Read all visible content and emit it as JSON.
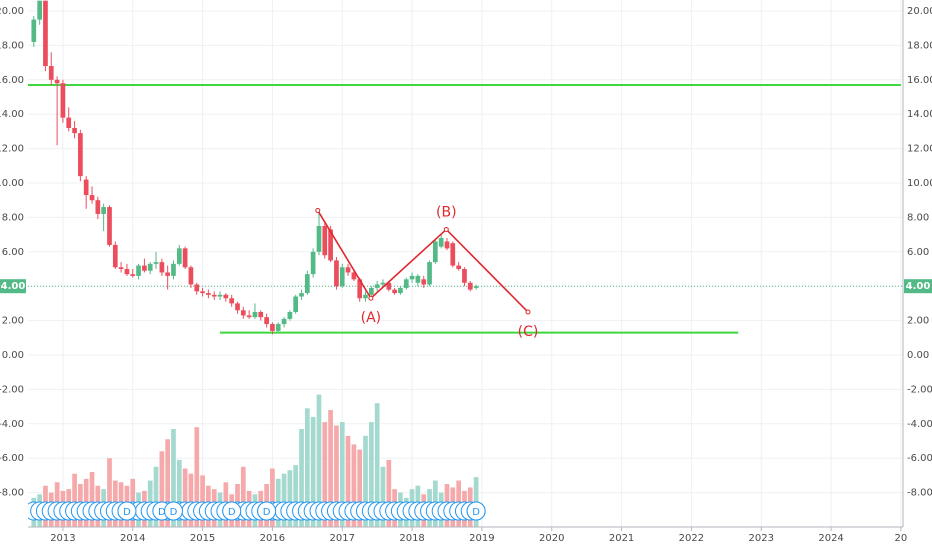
{
  "chart_data": {
    "type": "candlestick",
    "xlim": [
      2012.5,
      2025.03
    ],
    "ylim": [
      -10,
      20.64
    ],
    "grid": true,
    "up_color": "#53b987",
    "down_color": "#eb4d5c",
    "xticks": [
      2013,
      2014,
      2015,
      2016,
      2017,
      2018,
      2019,
      2020,
      2021,
      2022,
      2023,
      2024,
      {
        "value": 2025,
        "label": "20"
      }
    ],
    "yticks": [
      {
        "value": -8,
        "label": "-8.00"
      },
      {
        "value": -6,
        "label": "-6.00"
      },
      {
        "value": -4,
        "label": "-4.00"
      },
      {
        "value": -2,
        "label": "-2.00"
      },
      {
        "value": 0,
        "label": "0.00"
      },
      {
        "value": 2,
        "label": "2.00"
      },
      {
        "value": 4,
        "label": "4.00"
      },
      {
        "value": 6,
        "label": "6.00"
      },
      {
        "value": 8,
        "label": "8.00"
      },
      {
        "value": 10,
        "label": "10.00"
      },
      {
        "value": 12,
        "label": "12.00"
      },
      {
        "value": 14,
        "label": "14.00"
      },
      {
        "value": 16,
        "label": "16.00"
      },
      {
        "value": 18,
        "label": "18.00"
      },
      {
        "value": 20,
        "label": "20.00"
      }
    ],
    "last_price": {
      "value": 4,
      "label": "4.00"
    },
    "x": [
      2012.583,
      2012.667,
      2012.75,
      2012.833,
      2012.917,
      2013,
      2013.083,
      2013.167,
      2013.25,
      2013.333,
      2013.417,
      2013.5,
      2013.583,
      2013.667,
      2013.75,
      2013.833,
      2013.917,
      2014,
      2014.083,
      2014.167,
      2014.25,
      2014.333,
      2014.417,
      2014.5,
      2014.583,
      2014.667,
      2014.75,
      2014.833,
      2014.917,
      2015,
      2015.083,
      2015.167,
      2015.25,
      2015.333,
      2015.417,
      2015.5,
      2015.583,
      2015.667,
      2015.75,
      2015.833,
      2015.917,
      2016,
      2016.083,
      2016.167,
      2016.25,
      2016.333,
      2016.417,
      2016.5,
      2016.583,
      2016.667,
      2016.75,
      2016.833,
      2016.917,
      2017,
      2017.083,
      2017.167,
      2017.25,
      2017.333,
      2017.417,
      2017.5,
      2017.583,
      2017.667,
      2017.75,
      2017.833,
      2017.917,
      2018,
      2018.083,
      2018.167,
      2018.25,
      2018.333,
      2018.417,
      2018.5,
      2018.583,
      2018.667,
      2018.75,
      2018.833,
      2018.917
    ],
    "ohlc": [
      [
        18.2,
        19.7,
        17.9,
        19.5
      ],
      [
        19.5,
        20.6,
        19.2,
        20.6
      ],
      [
        20.6,
        20.6,
        16.5,
        16.8
      ],
      [
        16.8,
        17.6,
        15.7,
        16.0
      ],
      [
        16.0,
        16.2,
        12.2,
        15.8
      ],
      [
        15.8,
        16.0,
        13.5,
        13.8
      ],
      [
        13.8,
        14.4,
        13.0,
        13.2
      ],
      [
        13.2,
        13.6,
        12.6,
        12.9
      ],
      [
        12.9,
        13.1,
        10.1,
        10.4
      ],
      [
        10.2,
        10.4,
        8.5,
        9.3
      ],
      [
        9.3,
        9.8,
        8.8,
        9.0
      ],
      [
        9.0,
        9.2,
        7.9,
        8.2
      ],
      [
        8.2,
        8.8,
        7.2,
        8.6
      ],
      [
        8.6,
        8.7,
        6.3,
        6.4
      ],
      [
        6.4,
        6.6,
        5.0,
        5.1
      ],
      [
        5.1,
        5.4,
        4.8,
        5.0
      ],
      [
        5.0,
        5.3,
        4.6,
        4.7
      ],
      [
        4.7,
        5.0,
        4.5,
        4.6
      ],
      [
        4.6,
        5.3,
        4.4,
        5.2
      ],
      [
        5.2,
        5.6,
        4.8,
        4.9
      ],
      [
        4.9,
        5.4,
        4.7,
        5.3
      ],
      [
        5.3,
        6.0,
        5.0,
        5.4
      ],
      [
        5.4,
        5.6,
        4.6,
        4.8
      ],
      [
        4.8,
        5.2,
        3.8,
        4.6
      ],
      [
        4.6,
        5.5,
        4.4,
        5.3
      ],
      [
        5.3,
        6.4,
        5.2,
        6.2
      ],
      [
        6.2,
        6.3,
        5.0,
        5.1
      ],
      [
        5.1,
        5.2,
        3.9,
        4.1
      ],
      [
        4.1,
        4.2,
        3.5,
        3.7
      ],
      [
        3.7,
        3.9,
        3.4,
        3.6
      ],
      [
        3.6,
        3.8,
        3.3,
        3.5
      ],
      [
        3.5,
        3.7,
        3.2,
        3.4
      ],
      [
        3.4,
        3.7,
        3.2,
        3.5
      ],
      [
        3.5,
        3.6,
        3.1,
        3.3
      ],
      [
        3.3,
        3.5,
        2.8,
        3.0
      ],
      [
        3.0,
        3.1,
        2.4,
        2.6
      ],
      [
        2.6,
        2.8,
        2.1,
        2.3
      ],
      [
        2.3,
        2.6,
        2.1,
        2.2
      ],
      [
        2.2,
        3.0,
        2.1,
        2.5
      ],
      [
        2.5,
        2.6,
        2.0,
        2.2
      ],
      [
        2.2,
        2.4,
        1.6,
        1.8
      ],
      [
        1.8,
        1.9,
        1.2,
        1.4
      ],
      [
        1.4,
        1.9,
        1.3,
        1.8
      ],
      [
        1.8,
        2.2,
        1.6,
        2.1
      ],
      [
        2.1,
        2.6,
        2.0,
        2.5
      ],
      [
        2.5,
        3.5,
        2.4,
        3.4
      ],
      [
        3.4,
        3.8,
        3.2,
        3.6
      ],
      [
        3.6,
        4.9,
        3.5,
        4.7
      ],
      [
        4.7,
        6.2,
        4.5,
        6.0
      ],
      [
        6.0,
        8.4,
        5.8,
        7.5
      ],
      [
        7.5,
        7.7,
        5.6,
        5.8
      ],
      [
        7.3,
        7.5,
        5.4,
        5.5
      ],
      [
        5.5,
        5.7,
        3.8,
        4.0
      ],
      [
        4.0,
        5.3,
        3.9,
        5.1
      ],
      [
        5.1,
        5.3,
        4.6,
        4.8
      ],
      [
        4.8,
        4.9,
        4.3,
        4.4
      ],
      [
        4.4,
        4.5,
        3.1,
        3.3
      ],
      [
        3.3,
        3.7,
        3.1,
        3.5
      ],
      [
        3.5,
        4.0,
        3.4,
        3.9
      ],
      [
        3.9,
        4.3,
        3.7,
        4.1
      ],
      [
        4.1,
        4.4,
        3.9,
        4.2
      ],
      [
        4.2,
        4.3,
        3.7,
        3.8
      ],
      [
        3.8,
        3.9,
        3.5,
        3.6
      ],
      [
        3.6,
        4.0,
        3.5,
        3.9
      ],
      [
        3.9,
        4.5,
        3.8,
        4.4
      ],
      [
        4.4,
        4.8,
        4.2,
        4.6
      ],
      [
        4.2,
        4.7,
        4.0,
        4.6
      ],
      [
        4.4,
        4.6,
        3.9,
        4.1
      ],
      [
        4.1,
        5.5,
        4.0,
        5.4
      ],
      [
        5.4,
        6.7,
        5.3,
        6.6
      ],
      [
        6.3,
        7.0,
        6.2,
        6.8
      ],
      [
        6.6,
        6.8,
        6.1,
        6.2
      ],
      [
        6.5,
        6.6,
        5.1,
        5.2
      ],
      [
        5.2,
        5.4,
        4.9,
        5.0
      ],
      [
        5.0,
        5.1,
        4.0,
        4.2
      ],
      [
        4.2,
        4.3,
        3.7,
        3.8
      ],
      [
        3.9,
        4.1,
        3.8,
        4.0
      ]
    ],
    "volume": {
      "values": [
        -8.3,
        -8.1,
        -7.6,
        -8.0,
        -7.4,
        -7.9,
        -7.8,
        -6.9,
        -7.5,
        -7.2,
        -6.8,
        -7.6,
        -7.8,
        -6.0,
        -7.3,
        -7.4,
        -7.6,
        -7.2,
        -8.0,
        -7.9,
        -7.3,
        -6.5,
        -5.6,
        -4.9,
        -4.3,
        -6.1,
        -6.6,
        -6.9,
        -4.2,
        -7.0,
        -7.6,
        -7.8,
        -8.0,
        -7.4,
        -8.1,
        -7.5,
        -6.5,
        -7.9,
        -8.1,
        -7.9,
        -7.5,
        -6.6,
        -7.2,
        -6.9,
        -6.7,
        -6.4,
        -4.3,
        -3.1,
        -3.6,
        -2.3,
        -3.9,
        -3.2,
        -4.1,
        -3.9,
        -4.7,
        -5.2,
        -5.5,
        -4.7,
        -3.9,
        -2.8,
        -6.5,
        -6.1,
        -7.8,
        -8.0,
        -8.3,
        -7.8,
        -7.6,
        -8.1,
        -7.8,
        -7.3,
        -8.0,
        -7.5,
        -7.7,
        -7.3,
        -7.9,
        -7.7,
        -7.1
      ],
      "up_color": "#a3d9cf",
      "down_color": "#f5a9ab"
    },
    "markers": [
      {
        "x": 2013.917,
        "label": "D"
      },
      {
        "x": 2014.417,
        "label": "D"
      },
      {
        "x": 2014.583,
        "label": "D"
      },
      {
        "x": 2015.417,
        "label": "D"
      },
      {
        "x": 2015.917,
        "label": "D"
      },
      {
        "x": 2018.917,
        "label": "D"
      }
    ],
    "hlines": [
      {
        "y": 15.7,
        "x": [
          2012.5,
          2025.0
        ],
        "color": "#3ed83e"
      },
      {
        "y": 1.3,
        "x": [
          2015.25,
          2022.67
        ],
        "color": "#3ed83e"
      }
    ],
    "wave": {
      "x": [
        2016.65,
        2017.41,
        2018.49,
        2019.66
      ],
      "y": [
        8.4,
        3.3,
        7.3,
        2.5
      ],
      "labels": [
        null,
        "(A)",
        "(B)",
        "(C)"
      ],
      "color": "#e0282e"
    }
  }
}
